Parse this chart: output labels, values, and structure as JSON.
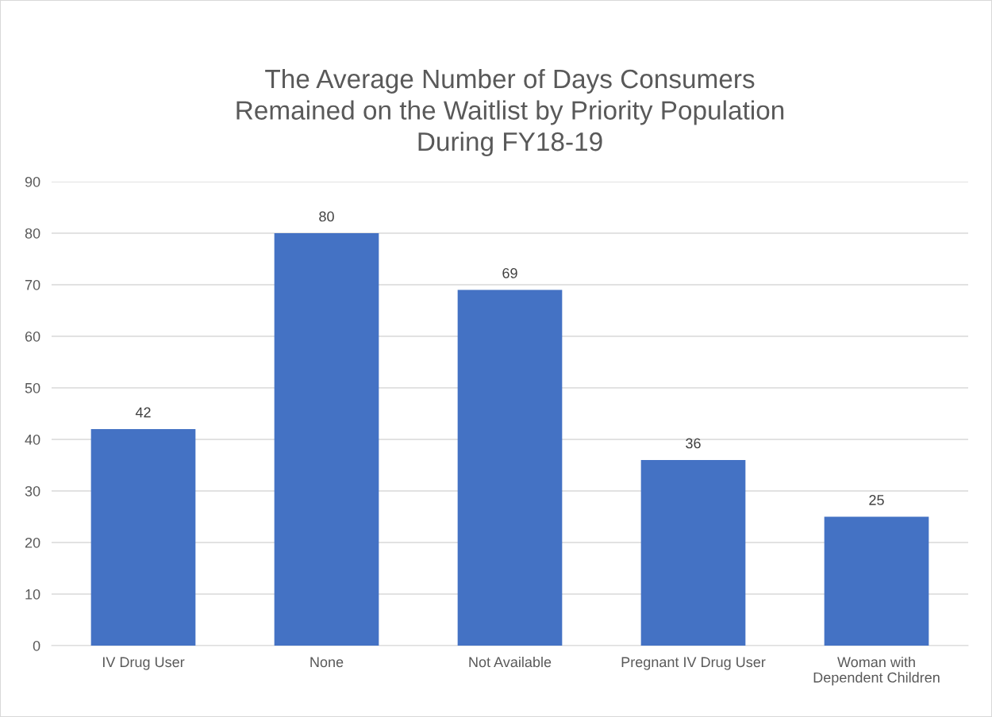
{
  "chart_data": {
    "type": "bar",
    "title": "The Average Number of Days Consumers\nRemained on the Waitlist by Priority Population\nDuring FY18-19",
    "categories": [
      "IV Drug User",
      "None",
      "Not Available",
      "Pregnant IV Drug User",
      "Woman with\nDependent Children"
    ],
    "values": [
      42,
      80,
      69,
      36,
      25
    ],
    "color": "#4472c4",
    "ylim": [
      0,
      90
    ],
    "yticks": [
      0,
      10,
      20,
      30,
      40,
      50,
      60,
      70,
      80,
      90
    ],
    "grid": "y",
    "data_labels": true
  }
}
